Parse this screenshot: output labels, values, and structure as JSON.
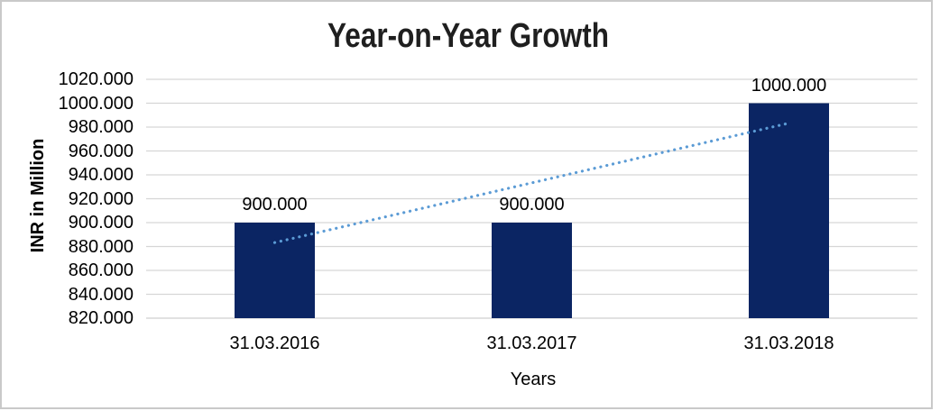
{
  "chart_data": {
    "type": "bar",
    "title": "Year-on-Year Growth",
    "xlabel": "Years",
    "ylabel": "INR in Million",
    "categories": [
      "31.03.2016",
      "31.03.2017",
      "31.03.2018"
    ],
    "values": [
      900,
      900,
      1000
    ],
    "data_labels": [
      "900.000",
      "900.000",
      "1000.000"
    ],
    "ytick_values": [
      1020,
      1000,
      980,
      960,
      940,
      920,
      900,
      880,
      860,
      840,
      820
    ],
    "ytick_labels": [
      "1020.000",
      "1000.000",
      "980.000",
      "960.000",
      "940.000",
      "920.000",
      "900.000",
      "880.000",
      "860.000",
      "840.000",
      "820.000"
    ],
    "ylim": [
      820,
      1020
    ],
    "grid": true,
    "legend": false,
    "trendline": {
      "type": "linear",
      "style": "dotted",
      "start_value": 883.3,
      "end_value": 983.3,
      "color": "#5B9BD5"
    },
    "colors": {
      "bar": "#0B2563",
      "trendline": "#5B9BD5",
      "gridline": "#D6D6D6",
      "axis_line": "#CFCFCF",
      "label_text": "#000000",
      "title_text": "#1F1F1F",
      "frame_border": "#C9C9C9"
    }
  }
}
